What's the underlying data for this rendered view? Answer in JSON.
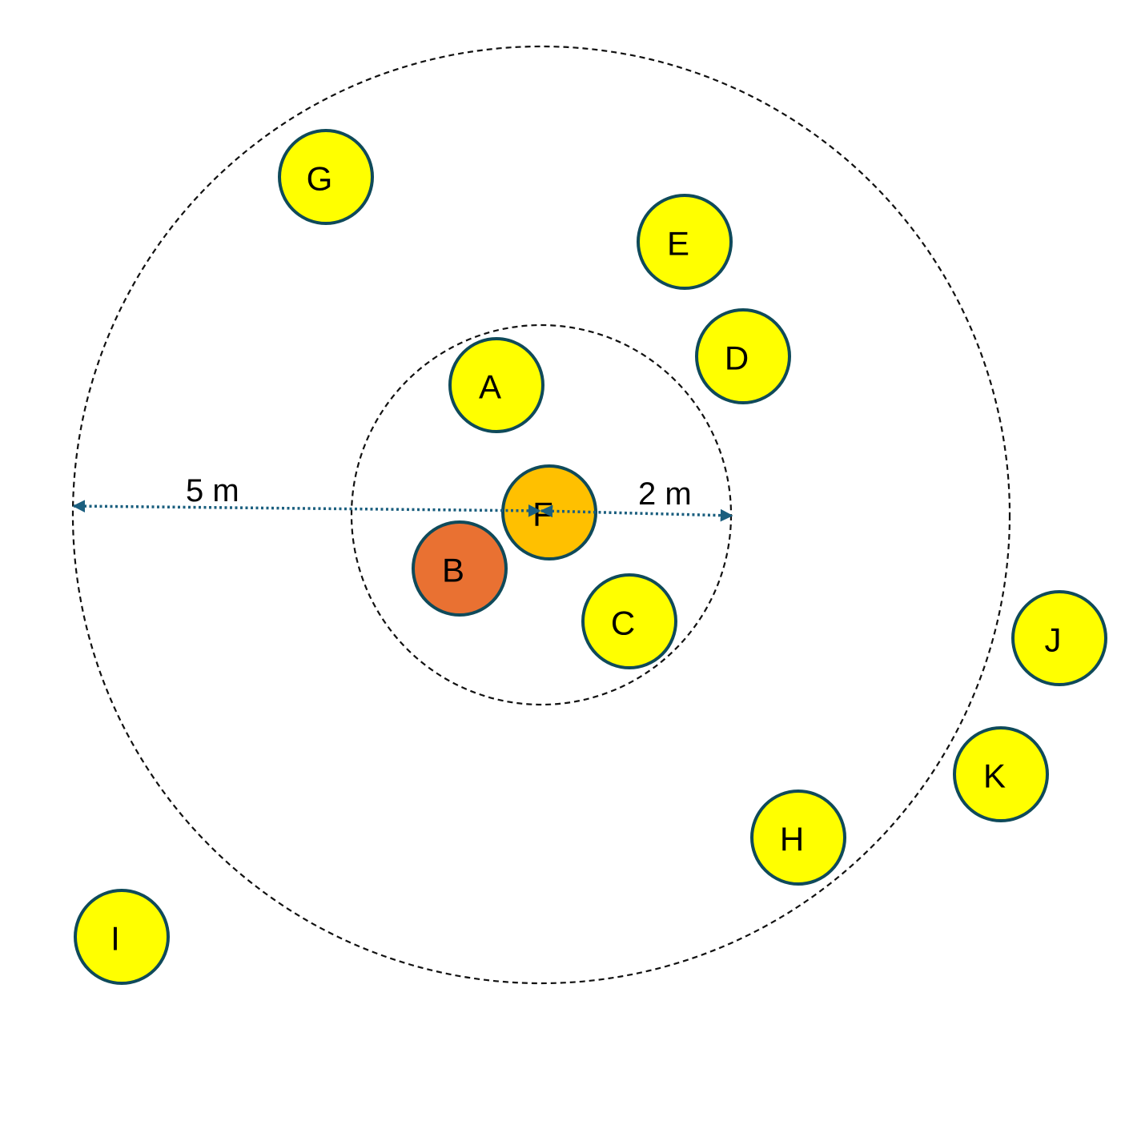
{
  "colors": {
    "outline": "#0f4a5a",
    "arrow": "#1b5f7f",
    "yellow": "#ffff00",
    "gold": "#ffc000",
    "orange": "#e97132"
  },
  "dimensions": {
    "outer_radius_label": "5 m",
    "inner_radius_label": "2 m"
  },
  "nodes": [
    {
      "label": "A",
      "fill": "yellow"
    },
    {
      "label": "B",
      "fill": "orange"
    },
    {
      "label": "C",
      "fill": "yellow"
    },
    {
      "label": "D",
      "fill": "yellow"
    },
    {
      "label": "E",
      "fill": "yellow"
    },
    {
      "label": "F",
      "fill": "gold"
    },
    {
      "label": "G",
      "fill": "yellow"
    },
    {
      "label": "H",
      "fill": "yellow"
    },
    {
      "label": "I",
      "fill": "yellow"
    },
    {
      "label": "J",
      "fill": "yellow"
    },
    {
      "label": "K",
      "fill": "yellow"
    }
  ]
}
